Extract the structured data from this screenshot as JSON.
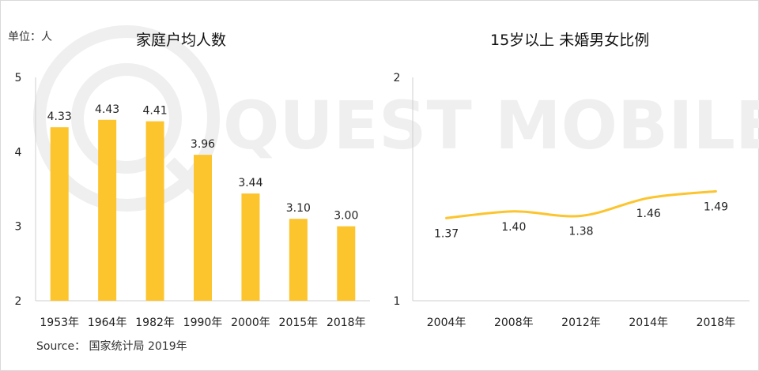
{
  "watermark": {
    "text": "QUEST MOBILE",
    "color": "#ececec"
  },
  "unit_label": "单位：人",
  "source_label": "Source： 国家统计局 2019年",
  "colors": {
    "bar": "#FCC42D",
    "line": "#FCC42D",
    "axis": "#cfcfcf",
    "text": "#222222"
  },
  "chart_data": [
    {
      "type": "bar",
      "title": "家庭户均人数",
      "categories": [
        "1953年",
        "1964年",
        "1982年",
        "1990年",
        "2000年",
        "2015年",
        "2018年"
      ],
      "values": [
        4.33,
        4.43,
        4.41,
        3.96,
        3.44,
        3.1,
        3.0
      ],
      "data_labels": [
        "4.33",
        "4.43",
        "4.41",
        "3.96",
        "3.44",
        "3.10",
        "3.00"
      ],
      "yticks": [
        "2",
        "3",
        "4",
        "5"
      ],
      "ylim": [
        2,
        5
      ],
      "grid": false
    },
    {
      "type": "line",
      "title": "15岁以上 未婚男女比例",
      "categories": [
        "2004年",
        "2008年",
        "2012年",
        "2014年",
        "2018年"
      ],
      "values": [
        1.37,
        1.4,
        1.38,
        1.46,
        1.49
      ],
      "data_labels": [
        "1.37",
        "1.40",
        "1.38",
        "1.46",
        "1.49"
      ],
      "yticks": [
        "1",
        "2"
      ],
      "ylim": [
        1,
        2
      ],
      "grid": false
    }
  ]
}
